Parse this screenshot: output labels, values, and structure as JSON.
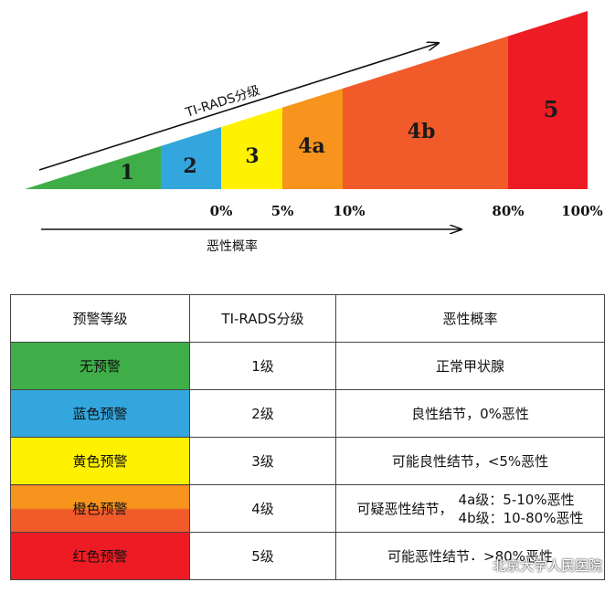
{
  "diagram": {
    "title": "TI-RADS分级",
    "axis_label": "恶性概率",
    "segments": [
      {
        "label": "1",
        "color": "#3fae49"
      },
      {
        "label": "2",
        "color": "#33a6de"
      },
      {
        "label": "3",
        "color": "#fff200"
      },
      {
        "label": "4a",
        "color": "#f7941d"
      },
      {
        "label": "4b",
        "color": "#f15a29"
      },
      {
        "label": "5",
        "color": "#ed1c24"
      }
    ],
    "percent_marks": [
      "0%",
      "5%",
      "10%",
      "80%",
      "100%"
    ]
  },
  "table": {
    "headers": [
      "预警等级",
      "TI-RADS分级",
      "恶性概率"
    ],
    "rows": [
      {
        "level": "无预警",
        "grade": "1级",
        "prob": "正常甲状腺",
        "color": "#3fae49"
      },
      {
        "level": "蓝色预警",
        "grade": "2级",
        "prob": "良性结节，0%恶性",
        "color": "#33a6de"
      },
      {
        "level": "黄色预警",
        "grade": "3级",
        "prob": "可能良性结节，<5%恶性",
        "color": "#fff200"
      },
      {
        "level": "橙色预警",
        "grade": "4级",
        "prob_main": "可疑恶性结节，",
        "prob_a": "4a级：5-10%恶性",
        "prob_b": "4b级：10-80%恶性",
        "color_top": "#f7941d",
        "color_bottom": "#f15a29"
      },
      {
        "level": "红色预警",
        "grade": "5级",
        "prob": "可能恶性结节，>80%恶性",
        "color": "#ed1c24"
      }
    ]
  },
  "watermark": {
    "text": "北京大学人民医院",
    "icon": "wechat-icon"
  }
}
